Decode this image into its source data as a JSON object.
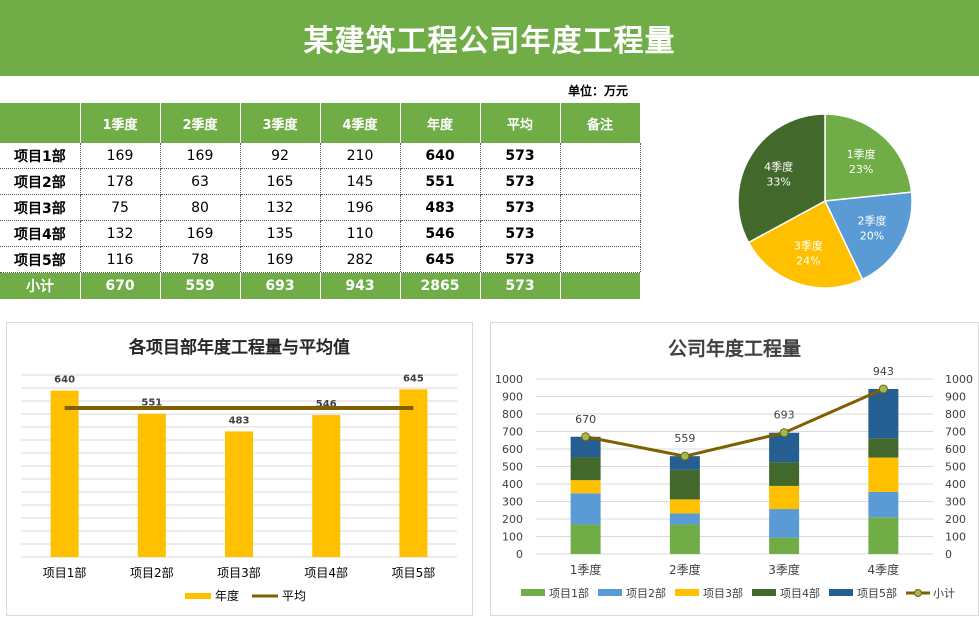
{
  "title": "某建筑工程公司年度工程量",
  "unit_label": "单位：万元",
  "table": {
    "headers": [
      "",
      "1季度",
      "2季度",
      "3季度",
      "4季度",
      "年度",
      "平均",
      "备注"
    ],
    "rows": [
      {
        "name": "项目1部",
        "q1": "169",
        "q2": "169",
        "q3": "92",
        "q4": "210",
        "year": "640",
        "avg": "573",
        "note": ""
      },
      {
        "name": "项目2部",
        "q1": "178",
        "q2": "63",
        "q3": "165",
        "q4": "145",
        "year": "551",
        "avg": "573",
        "note": ""
      },
      {
        "name": "项目3部",
        "q1": "75",
        "q2": "80",
        "q3": "132",
        "q4": "196",
        "year": "483",
        "avg": "573",
        "note": ""
      },
      {
        "name": "项目4部",
        "q1": "132",
        "q2": "169",
        "q3": "135",
        "q4": "110",
        "year": "546",
        "avg": "573",
        "note": ""
      },
      {
        "name": "项目5部",
        "q1": "116",
        "q2": "78",
        "q3": "169",
        "q4": "282",
        "year": "645",
        "avg": "573",
        "note": ""
      }
    ],
    "total": {
      "name": "小计",
      "q1": "670",
      "q2": "559",
      "q3": "693",
      "q4": "943",
      "year": "2865",
      "avg": "573",
      "note": ""
    }
  },
  "chart_data": [
    {
      "type": "pie",
      "title": "",
      "categories": [
        "1季度",
        "2季度",
        "3季度",
        "4季度"
      ],
      "values": [
        670,
        559,
        693,
        943
      ],
      "percent_labels": [
        "23%",
        "20%",
        "24%",
        "33%"
      ],
      "colors": [
        "#70ad47",
        "#5b9bd5",
        "#ffc000",
        "#43682b"
      ]
    },
    {
      "type": "bar",
      "title": "各项目部年度工程量与平均值",
      "categories": [
        "项目1部",
        "项目2部",
        "项目3部",
        "项目4部",
        "项目5部"
      ],
      "series": [
        {
          "name": "年度",
          "type": "bar",
          "values": [
            640,
            551,
            483,
            546,
            645
          ],
          "color": "#ffc000"
        },
        {
          "name": "平均",
          "type": "line",
          "values": [
            573,
            573,
            573,
            573,
            573
          ],
          "color": "#7f6000"
        }
      ],
      "data_labels": [
        "640",
        "551",
        "483",
        "546",
        "645"
      ],
      "legend": [
        "年度",
        "平均"
      ],
      "legend_position": "bottom",
      "ylim": [
        0,
        700
      ]
    },
    {
      "type": "bar",
      "stacked": true,
      "title": "公司年度工程量",
      "categories": [
        "1季度",
        "2季度",
        "3季度",
        "4季度"
      ],
      "series": [
        {
          "name": "项目1部",
          "values": [
            169,
            169,
            92,
            210
          ],
          "color": "#70ad47"
        },
        {
          "name": "项目2部",
          "values": [
            178,
            63,
            165,
            145
          ],
          "color": "#5b9bd5"
        },
        {
          "name": "项目3部",
          "values": [
            75,
            80,
            132,
            196
          ],
          "color": "#ffc000"
        },
        {
          "name": "项目4部",
          "values": [
            132,
            169,
            135,
            110
          ],
          "color": "#43682b"
        },
        {
          "name": "项目5部",
          "values": [
            116,
            78,
            169,
            282
          ],
          "color": "#255e91"
        },
        {
          "name": "小计",
          "type": "line",
          "values": [
            670,
            559,
            693,
            943
          ],
          "color": "#7f6000"
        }
      ],
      "line_labels": [
        "670",
        "559",
        "693",
        "943"
      ],
      "y_ticks": [
        "0",
        "100",
        "200",
        "300",
        "400",
        "500",
        "600",
        "700",
        "800",
        "900",
        "1000"
      ],
      "ylim": [
        0,
        1000
      ],
      "legend": [
        "项目1部",
        "项目2部",
        "项目3部",
        "项目4部",
        "项目5部",
        "小计"
      ],
      "legend_position": "bottom"
    }
  ]
}
